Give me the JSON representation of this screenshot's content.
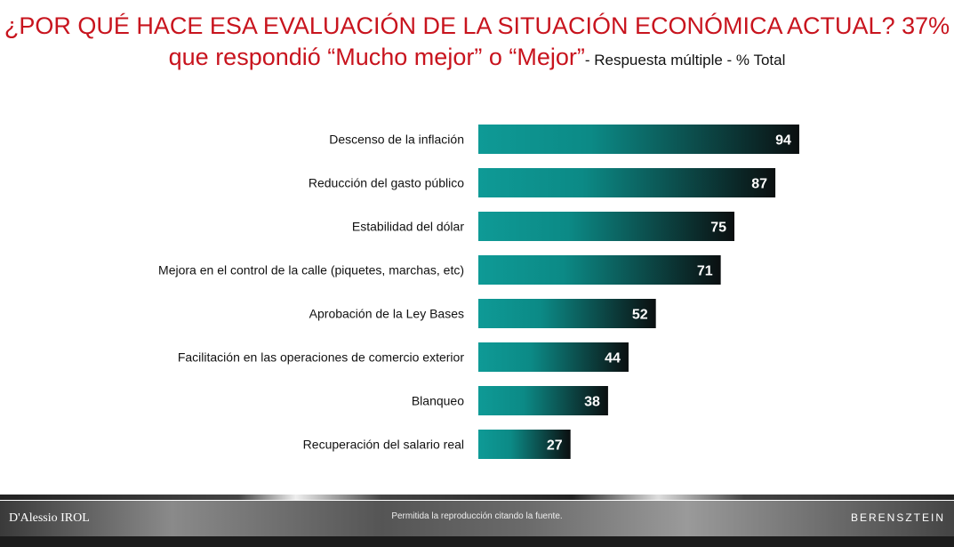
{
  "title": {
    "main": "¿POR QUÉ HACE ESA EVALUACIÓN DE LA SITUACIÓN ECONÓMICA ACTUAL? 37% que respondió “Mucho mejor” o “Mejor”",
    "subtitle": "- Respuesta múltiple - % Total"
  },
  "chart_data": {
    "type": "bar",
    "orientation": "horizontal",
    "categories": [
      "Descenso de la inflación",
      "Reducción del gasto público",
      "Estabilidad del dólar",
      "Mejora en el control de la calle (piquetes, marchas, etc)",
      "Aprobación de la Ley Bases",
      "Facilitación en las operaciones de comercio exterior",
      "Blanqueo",
      "Recuperación del salario real"
    ],
    "values": [
      94,
      87,
      75,
      71,
      52,
      44,
      38,
      27
    ],
    "xlim": [
      0,
      100
    ],
    "grid": false,
    "colors": {
      "bar_start": "#0e9a96",
      "bar_end": "#0b0f10",
      "label": "#ffffff"
    }
  },
  "footer": {
    "left_logo": "D'Alessio IROL",
    "note": "Permitida la reproducción citando la fuente.",
    "right_logo": "BERENSZTEIN"
  }
}
